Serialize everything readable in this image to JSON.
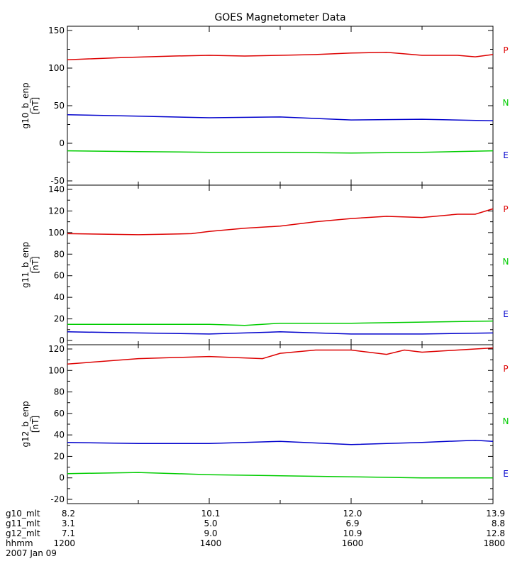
{
  "chart_data": {
    "title": "GOES Magnetometer Data",
    "type": "line",
    "x_hhmm": [
      1200,
      1400,
      1600,
      1800
    ],
    "panels": [
      {
        "ylabel": "g10_b_enp",
        "yunit": "[nT]",
        "ylim": [
          -50,
          150
        ],
        "yticks": [
          -50,
          0,
          50,
          100,
          150
        ],
        "legend": [
          {
            "label": "P",
            "color": "#dd0000"
          },
          {
            "label": "N",
            "color": "#00cc00"
          },
          {
            "label": "E",
            "color": "#0000cc"
          }
        ],
        "series": [
          {
            "color": "#dd0000",
            "x": [
              1200,
              1245,
              1330,
              1400,
              1430,
              1500,
              1530,
              1600,
              1630,
              1700,
              1730,
              1745,
              1800
            ],
            "y": [
              111,
              114,
              116,
              117,
              116,
              117,
              118,
              120,
              121,
              117,
              117,
              115,
              118
            ]
          },
          {
            "color": "#0000cc",
            "x": [
              1200,
              1300,
              1400,
              1500,
              1600,
              1700,
              1800
            ],
            "y": [
              38,
              36,
              34,
              35,
              31,
              32,
              30
            ]
          },
          {
            "color": "#00cc00",
            "x": [
              1200,
              1300,
              1400,
              1500,
              1600,
              1700,
              1800
            ],
            "y": [
              -10,
              -11,
              -12,
              -12,
              -13,
              -12,
              -10
            ]
          }
        ]
      },
      {
        "ylabel": "g11_b_enp",
        "yunit": "[nT]",
        "ylim": [
          0,
          140
        ],
        "yticks": [
          0,
          20,
          40,
          60,
          80,
          100,
          120,
          140
        ],
        "legend": [
          {
            "label": "P",
            "color": "#dd0000"
          },
          {
            "label": "N",
            "color": "#00cc00"
          },
          {
            "label": "E",
            "color": "#0000cc"
          }
        ],
        "series": [
          {
            "color": "#dd0000",
            "x": [
              1200,
              1300,
              1345,
              1400,
              1430,
              1500,
              1530,
              1600,
              1630,
              1700,
              1730,
              1745,
              1800
            ],
            "y": [
              99,
              98,
              99,
              101,
              104,
              106,
              110,
              113,
              115,
              114,
              117,
              117,
              122
            ]
          },
          {
            "color": "#00cc00",
            "x": [
              1200,
              1300,
              1400,
              1430,
              1500,
              1600,
              1700,
              1800
            ],
            "y": [
              15,
              15,
              15,
              14,
              16,
              16,
              17,
              18
            ]
          },
          {
            "color": "#0000cc",
            "x": [
              1200,
              1300,
              1400,
              1500,
              1600,
              1700,
              1800
            ],
            "y": [
              8,
              7,
              6,
              8,
              6,
              6,
              7
            ]
          }
        ]
      },
      {
        "ylabel": "g12_b_enp",
        "yunit": "[nT]",
        "ylim": [
          -20,
          120
        ],
        "yticks": [
          -20,
          0,
          20,
          40,
          60,
          80,
          100,
          120
        ],
        "legend": [
          {
            "label": "P",
            "color": "#dd0000"
          },
          {
            "label": "N",
            "color": "#00cc00"
          },
          {
            "label": "E",
            "color": "#0000cc"
          }
        ],
        "series": [
          {
            "color": "#dd0000",
            "x": [
              1200,
              1300,
              1400,
              1445,
              1500,
              1530,
              1600,
              1630,
              1645,
              1700,
              1730,
              1800
            ],
            "y": [
              106,
              111,
              113,
              111,
              116,
              119,
              119,
              115,
              119,
              117,
              119,
              121
            ]
          },
          {
            "color": "#0000cc",
            "x": [
              1200,
              1300,
              1400,
              1500,
              1600,
              1700,
              1745,
              1800
            ],
            "y": [
              33,
              32,
              32,
              34,
              31,
              33,
              35,
              34
            ]
          },
          {
            "color": "#00cc00",
            "x": [
              1200,
              1300,
              1400,
              1500,
              1600,
              1700,
              1800
            ],
            "y": [
              4,
              5,
              3,
              2,
              1,
              0,
              0
            ]
          }
        ]
      }
    ]
  },
  "footer": {
    "rows": [
      {
        "label": "g10_mlt",
        "values": [
          "8.2",
          "10.1",
          "12.0",
          "13.9"
        ]
      },
      {
        "label": "g11_mlt",
        "values": [
          "3.1",
          "5.0",
          "6.9",
          "8.8"
        ]
      },
      {
        "label": "g12_mlt",
        "values": [
          "7.1",
          "9.0",
          "10.9",
          "12.8"
        ]
      },
      {
        "label": "hhmm",
        "values": [
          "1200",
          "1400",
          "1600",
          "1800"
        ]
      }
    ],
    "date": "2007 Jan 09"
  }
}
